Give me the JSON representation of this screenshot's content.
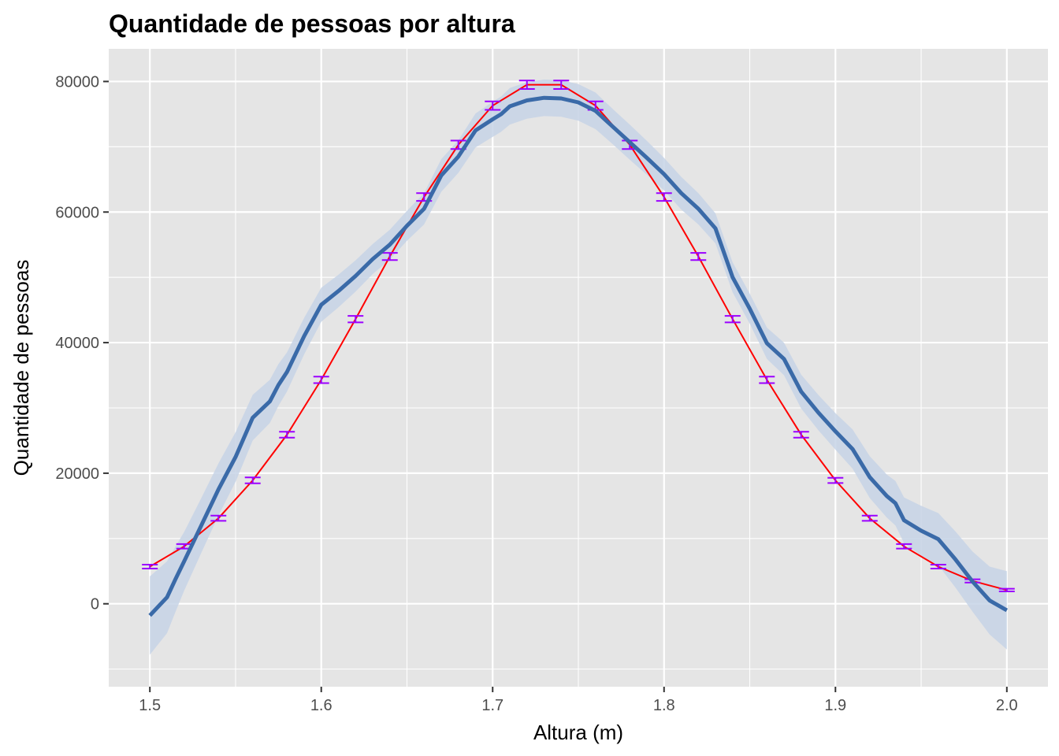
{
  "chart_data": {
    "type": "line",
    "title": "Quantidade de pessoas por altura",
    "xlabel": "Altura (m)",
    "ylabel": "Quantidade de pessoas",
    "xlim": [
      1.476,
      2.024
    ],
    "ylim": [
      -12700,
      85000
    ],
    "x_ticks": [
      1.5,
      1.6,
      1.7,
      1.8,
      1.9,
      2.0
    ],
    "x_tick_labels": [
      "1.5",
      "1.6",
      "1.7",
      "1.8",
      "1.9",
      "2.0"
    ],
    "y_ticks": [
      0,
      20000,
      40000,
      60000,
      80000
    ],
    "y_tick_labels": [
      "0",
      "20000",
      "40000",
      "60000",
      "80000"
    ],
    "grid": true,
    "legend": "none",
    "colors": {
      "panel": "#e5e5e5",
      "grid": "#ffffff",
      "model_line": "#ff0000",
      "errorbar": "#9b00ff",
      "smooth_line": "#3a6aa8",
      "ribbon": "#c7d4e6"
    },
    "model_series": {
      "x": [
        1.5,
        1.52,
        1.54,
        1.56,
        1.58,
        1.6,
        1.62,
        1.64,
        1.66,
        1.68,
        1.7,
        1.72,
        1.74,
        1.76,
        1.78,
        1.8,
        1.82,
        1.84,
        1.86,
        1.88,
        1.9,
        1.92,
        1.94,
        1.96,
        1.98,
        2.0
      ],
      "y": [
        5700,
        8800,
        13100,
        18900,
        25900,
        34300,
        43600,
        53200,
        62300,
        70300,
        76300,
        79500,
        79500,
        76300,
        70300,
        62300,
        53200,
        43600,
        34300,
        25900,
        18900,
        13100,
        8800,
        5700,
        3500,
        2100
      ],
      "error": [
        300,
        350,
        400,
        450,
        450,
        500,
        500,
        550,
        600,
        650,
        650,
        650,
        650,
        650,
        650,
        600,
        550,
        500,
        500,
        450,
        400,
        400,
        350,
        300,
        250,
        200
      ]
    },
    "smooth_series": {
      "x": [
        1.5,
        1.51,
        1.515,
        1.52,
        1.53,
        1.54,
        1.55,
        1.56,
        1.57,
        1.575,
        1.58,
        1.59,
        1.6,
        1.61,
        1.62,
        1.63,
        1.64,
        1.65,
        1.66,
        1.67,
        1.68,
        1.69,
        1.7,
        1.705,
        1.71,
        1.72,
        1.73,
        1.74,
        1.75,
        1.76,
        1.77,
        1.78,
        1.79,
        1.8,
        1.81,
        1.82,
        1.83,
        1.84,
        1.85,
        1.86,
        1.87,
        1.88,
        1.89,
        1.9,
        1.91,
        1.92,
        1.93,
        1.935,
        1.94,
        1.95,
        1.96,
        1.97,
        1.98,
        1.99,
        2.0
      ],
      "y": [
        -1800,
        1000,
        3800,
        6500,
        12000,
        17500,
        22500,
        28500,
        31000,
        33500,
        35500,
        41000,
        45800,
        47900,
        50200,
        52800,
        55000,
        57900,
        60500,
        65600,
        68500,
        72500,
        74200,
        75000,
        76200,
        77100,
        77500,
        77400,
        76800,
        75500,
        73100,
        70700,
        68300,
        65800,
        62900,
        60500,
        57500,
        50000,
        45200,
        39900,
        37500,
        32500,
        29300,
        26400,
        23700,
        19400,
        16500,
        15400,
        12800,
        11200,
        9900,
        6800,
        3400,
        500,
        -1000
      ],
      "band": [
        6000,
        5500,
        5000,
        4500,
        4200,
        4000,
        3800,
        3500,
        3300,
        3200,
        3000,
        2800,
        2600,
        2500,
        2400,
        2300,
        2300,
        2300,
        2400,
        2500,
        2500,
        2600,
        2700,
        2700,
        2800,
        2800,
        2800,
        2800,
        2800,
        2800,
        2700,
        2700,
        2600,
        2500,
        2500,
        2400,
        2300,
        2300,
        2300,
        2400,
        2500,
        2600,
        2700,
        2800,
        3000,
        3200,
        3300,
        3400,
        3500,
        3800,
        4000,
        4300,
        4600,
        5200,
        6000
      ]
    }
  }
}
